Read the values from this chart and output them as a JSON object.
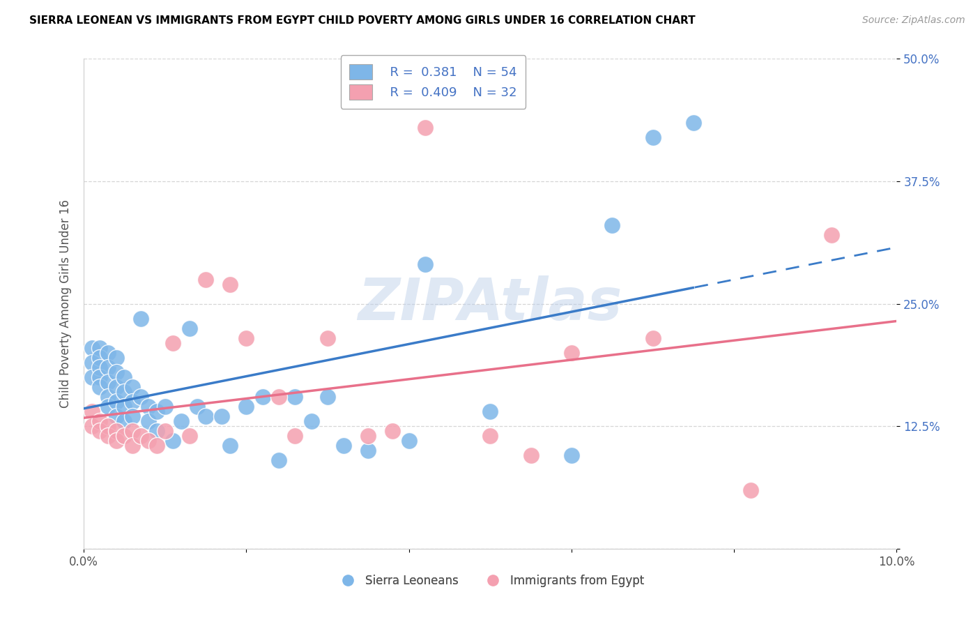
{
  "title": "SIERRA LEONEAN VS IMMIGRANTS FROM EGYPT CHILD POVERTY AMONG GIRLS UNDER 16 CORRELATION CHART",
  "source": "Source: ZipAtlas.com",
  "ylabel": "Child Poverty Among Girls Under 16",
  "xlim": [
    0.0,
    0.1
  ],
  "ylim": [
    0.0,
    0.5
  ],
  "xticks": [
    0.0,
    0.02,
    0.04,
    0.06,
    0.08,
    0.1
  ],
  "xticklabels": [
    "0.0%",
    "",
    "",
    "",
    "",
    "10.0%"
  ],
  "yticks": [
    0.0,
    0.125,
    0.25,
    0.375,
    0.5
  ],
  "yticklabels": [
    "",
    "12.5%",
    "25.0%",
    "37.5%",
    "50.0%"
  ],
  "r_blue": 0.381,
  "n_blue": 54,
  "r_pink": 0.409,
  "n_pink": 32,
  "blue_color": "#7EB6E8",
  "pink_color": "#F4A0B0",
  "blue_line_color": "#3A7BC8",
  "pink_line_color": "#E8708A",
  "legend_entries": [
    "Sierra Leoneans",
    "Immigrants from Egypt"
  ],
  "blue_x": [
    0.001,
    0.001,
    0.001,
    0.002,
    0.002,
    0.002,
    0.002,
    0.002,
    0.003,
    0.003,
    0.003,
    0.003,
    0.003,
    0.004,
    0.004,
    0.004,
    0.004,
    0.004,
    0.005,
    0.005,
    0.005,
    0.005,
    0.006,
    0.006,
    0.006,
    0.007,
    0.007,
    0.008,
    0.008,
    0.009,
    0.009,
    0.01,
    0.011,
    0.012,
    0.013,
    0.014,
    0.015,
    0.017,
    0.018,
    0.02,
    0.022,
    0.024,
    0.026,
    0.028,
    0.03,
    0.032,
    0.035,
    0.04,
    0.042,
    0.05,
    0.06,
    0.065,
    0.07,
    0.075
  ],
  "blue_y": [
    0.205,
    0.19,
    0.175,
    0.205,
    0.195,
    0.185,
    0.175,
    0.165,
    0.2,
    0.185,
    0.17,
    0.155,
    0.145,
    0.195,
    0.18,
    0.165,
    0.15,
    0.135,
    0.175,
    0.16,
    0.145,
    0.13,
    0.165,
    0.15,
    0.135,
    0.235,
    0.155,
    0.145,
    0.13,
    0.14,
    0.12,
    0.145,
    0.11,
    0.13,
    0.225,
    0.145,
    0.135,
    0.135,
    0.105,
    0.145,
    0.155,
    0.09,
    0.155,
    0.13,
    0.155,
    0.105,
    0.1,
    0.11,
    0.29,
    0.14,
    0.095,
    0.33,
    0.42,
    0.435
  ],
  "pink_x": [
    0.001,
    0.001,
    0.002,
    0.002,
    0.003,
    0.003,
    0.004,
    0.004,
    0.005,
    0.006,
    0.006,
    0.007,
    0.008,
    0.009,
    0.01,
    0.011,
    0.013,
    0.015,
    0.018,
    0.02,
    0.024,
    0.026,
    0.03,
    0.035,
    0.038,
    0.042,
    0.05,
    0.055,
    0.06,
    0.07,
    0.082,
    0.092
  ],
  "pink_y": [
    0.14,
    0.125,
    0.13,
    0.12,
    0.125,
    0.115,
    0.12,
    0.11,
    0.115,
    0.12,
    0.105,
    0.115,
    0.11,
    0.105,
    0.12,
    0.21,
    0.115,
    0.275,
    0.27,
    0.215,
    0.155,
    0.115,
    0.215,
    0.115,
    0.12,
    0.43,
    0.115,
    0.095,
    0.2,
    0.215,
    0.06,
    0.32
  ]
}
